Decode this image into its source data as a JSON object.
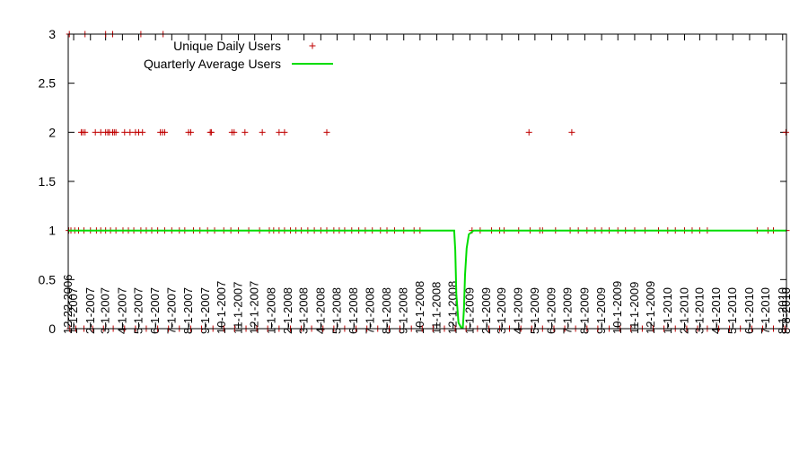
{
  "chart_data": {
    "type": "scatter",
    "title": "",
    "xlabel": "",
    "ylabel": "",
    "ylim": [
      0,
      3
    ],
    "yticks": [
      "0",
      "0.5",
      "1",
      "1.5",
      "2",
      "2.5",
      "3"
    ],
    "legend_position": "top-left",
    "grid": false,
    "colors": {
      "points": "#c00000",
      "line": "#00dd00"
    },
    "x_tick_labels": [
      "12-22-2006",
      "1-1-2007",
      "2-1-2007",
      "3-1-2007",
      "4-1-2007",
      "5-1-2007",
      "6-1-2007",
      "7-1-2007",
      "8-1-2007",
      "9-1-2007",
      "10-1-2007",
      "11-1-2007",
      "12-1-2007",
      "1-1-2008",
      "2-1-2008",
      "3-1-2008",
      "4-1-2008",
      "5-1-2008",
      "6-1-2008",
      "7-1-2008",
      "8-1-2008",
      "9-1-2008",
      "10-1-2008",
      "11-1-2008",
      "12-1-2008",
      "1-1-2009",
      "2-1-2009",
      "3-1-2009",
      "4-1-2009",
      "5-1-2009",
      "6-1-2009",
      "7-1-2009",
      "8-1-2009",
      "9-1-2009",
      "10-1-2009",
      "11-1-2009",
      "12-1-2009",
      "1-1-2010",
      "2-1-2010",
      "3-1-2010",
      "4-1-2010",
      "5-1-2010",
      "6-1-2010",
      "7-1-2010",
      "8-1-2010",
      "8-8-2010"
    ],
    "series": [
      {
        "name": "Unique Daily Users",
        "marker": "+",
        "points": [
          {
            "x": "2006-12-24",
            "y": 3
          },
          {
            "x": "2007-01-22",
            "y": 3
          },
          {
            "x": "2007-03-01",
            "y": 3
          },
          {
            "x": "2007-03-14",
            "y": 3
          },
          {
            "x": "2007-05-05",
            "y": 3
          },
          {
            "x": "2007-06-15",
            "y": 3
          },
          {
            "x": "2007-01-15",
            "y": 2
          },
          {
            "x": "2007-01-18",
            "y": 2
          },
          {
            "x": "2007-01-22",
            "y": 2
          },
          {
            "x": "2007-02-10",
            "y": 2
          },
          {
            "x": "2007-02-20",
            "y": 2
          },
          {
            "x": "2007-03-01",
            "y": 2
          },
          {
            "x": "2007-03-05",
            "y": 2
          },
          {
            "x": "2007-03-08",
            "y": 2
          },
          {
            "x": "2007-03-14",
            "y": 2
          },
          {
            "x": "2007-03-17",
            "y": 2
          },
          {
            "x": "2007-03-20",
            "y": 2
          },
          {
            "x": "2007-04-05",
            "y": 2
          },
          {
            "x": "2007-04-15",
            "y": 2
          },
          {
            "x": "2007-04-25",
            "y": 2
          },
          {
            "x": "2007-05-01",
            "y": 2
          },
          {
            "x": "2007-05-08",
            "y": 2
          },
          {
            "x": "2007-06-10",
            "y": 2
          },
          {
            "x": "2007-06-14",
            "y": 2
          },
          {
            "x": "2007-06-18",
            "y": 2
          },
          {
            "x": "2007-08-01",
            "y": 2
          },
          {
            "x": "2007-08-05",
            "y": 2
          },
          {
            "x": "2007-09-10",
            "y": 2
          },
          {
            "x": "2007-09-12",
            "y": 2
          },
          {
            "x": "2007-10-20",
            "y": 2
          },
          {
            "x": "2007-10-24",
            "y": 2
          },
          {
            "x": "2007-11-13",
            "y": 2
          },
          {
            "x": "2007-12-15",
            "y": 2
          },
          {
            "x": "2008-01-15",
            "y": 2
          },
          {
            "x": "2008-01-25",
            "y": 2
          },
          {
            "x": "2008-04-12",
            "y": 2
          },
          {
            "x": "2009-04-20",
            "y": 2
          },
          {
            "x": "2009-07-08",
            "y": 2
          },
          {
            "x": "2010-08-07",
            "y": 2
          },
          {
            "x": "2006-12-23",
            "y": 1
          },
          {
            "x": "2006-12-27",
            "y": 1
          },
          {
            "x": "2007-01-03",
            "y": 1
          },
          {
            "x": "2007-01-10",
            "y": 1
          },
          {
            "x": "2007-01-20",
            "y": 1
          },
          {
            "x": "2007-02-01",
            "y": 1
          },
          {
            "x": "2007-02-12",
            "y": 1
          },
          {
            "x": "2007-02-20",
            "y": 1
          },
          {
            "x": "2007-03-01",
            "y": 1
          },
          {
            "x": "2007-03-10",
            "y": 1
          },
          {
            "x": "2007-03-20",
            "y": 1
          },
          {
            "x": "2007-04-02",
            "y": 1
          },
          {
            "x": "2007-04-12",
            "y": 1
          },
          {
            "x": "2007-04-22",
            "y": 1
          },
          {
            "x": "2007-05-05",
            "y": 1
          },
          {
            "x": "2007-05-15",
            "y": 1
          },
          {
            "x": "2007-05-25",
            "y": 1
          },
          {
            "x": "2007-06-05",
            "y": 1
          },
          {
            "x": "2007-06-18",
            "y": 1
          },
          {
            "x": "2007-07-01",
            "y": 1
          },
          {
            "x": "2007-07-15",
            "y": 1
          },
          {
            "x": "2007-07-25",
            "y": 1
          },
          {
            "x": "2007-08-10",
            "y": 1
          },
          {
            "x": "2007-08-22",
            "y": 1
          },
          {
            "x": "2007-09-05",
            "y": 1
          },
          {
            "x": "2007-09-18",
            "y": 1
          },
          {
            "x": "2007-10-05",
            "y": 1
          },
          {
            "x": "2007-10-18",
            "y": 1
          },
          {
            "x": "2007-11-01",
            "y": 1
          },
          {
            "x": "2007-11-20",
            "y": 1
          },
          {
            "x": "2007-12-10",
            "y": 1
          },
          {
            "x": "2007-12-28",
            "y": 1
          },
          {
            "x": "2008-01-05",
            "y": 1
          },
          {
            "x": "2008-01-15",
            "y": 1
          },
          {
            "x": "2008-01-25",
            "y": 1
          },
          {
            "x": "2008-02-05",
            "y": 1
          },
          {
            "x": "2008-02-15",
            "y": 1
          },
          {
            "x": "2008-02-25",
            "y": 1
          },
          {
            "x": "2008-03-08",
            "y": 1
          },
          {
            "x": "2008-03-20",
            "y": 1
          },
          {
            "x": "2008-04-01",
            "y": 1
          },
          {
            "x": "2008-04-12",
            "y": 1
          },
          {
            "x": "2008-04-25",
            "y": 1
          },
          {
            "x": "2008-05-05",
            "y": 1
          },
          {
            "x": "2008-05-15",
            "y": 1
          },
          {
            "x": "2008-05-28",
            "y": 1
          },
          {
            "x": "2008-06-10",
            "y": 1
          },
          {
            "x": "2008-06-22",
            "y": 1
          },
          {
            "x": "2008-07-05",
            "y": 1
          },
          {
            "x": "2008-07-20",
            "y": 1
          },
          {
            "x": "2008-08-01",
            "y": 1
          },
          {
            "x": "2008-08-15",
            "y": 1
          },
          {
            "x": "2008-09-01",
            "y": 1
          },
          {
            "x": "2008-09-20",
            "y": 1
          },
          {
            "x": "2008-10-01",
            "y": 1
          },
          {
            "x": "2009-01-05",
            "y": 1
          },
          {
            "x": "2009-01-20",
            "y": 1
          },
          {
            "x": "2009-02-10",
            "y": 1
          },
          {
            "x": "2009-02-25",
            "y": 1
          },
          {
            "x": "2009-03-05",
            "y": 1
          },
          {
            "x": "2009-04-01",
            "y": 1
          },
          {
            "x": "2009-04-22",
            "y": 1
          },
          {
            "x": "2009-05-10",
            "y": 1
          },
          {
            "x": "2009-05-15",
            "y": 1
          },
          {
            "x": "2009-06-08",
            "y": 1
          },
          {
            "x": "2009-07-05",
            "y": 1
          },
          {
            "x": "2009-07-20",
            "y": 1
          },
          {
            "x": "2009-08-05",
            "y": 1
          },
          {
            "x": "2009-08-20",
            "y": 1
          },
          {
            "x": "2009-09-01",
            "y": 1
          },
          {
            "x": "2009-09-15",
            "y": 1
          },
          {
            "x": "2009-10-01",
            "y": 1
          },
          {
            "x": "2009-10-15",
            "y": 1
          },
          {
            "x": "2009-11-01",
            "y": 1
          },
          {
            "x": "2009-11-20",
            "y": 1
          },
          {
            "x": "2009-12-15",
            "y": 1
          },
          {
            "x": "2010-01-01",
            "y": 1
          },
          {
            "x": "2010-01-15",
            "y": 1
          },
          {
            "x": "2010-02-01",
            "y": 1
          },
          {
            "x": "2010-02-15",
            "y": 1
          },
          {
            "x": "2010-03-01",
            "y": 1
          },
          {
            "x": "2010-03-15",
            "y": 1
          },
          {
            "x": "2010-06-15",
            "y": 1
          },
          {
            "x": "2010-07-05",
            "y": 1
          },
          {
            "x": "2010-07-15",
            "y": 1
          },
          {
            "x": "2010-08-08",
            "y": 1
          },
          {
            "x": "2006-12-25",
            "y": 0
          },
          {
            "x": "2007-01-05",
            "y": 0
          },
          {
            "x": "2007-01-20",
            "y": 0
          },
          {
            "x": "2007-02-05",
            "y": 0
          },
          {
            "x": "2007-02-25",
            "y": 0
          },
          {
            "x": "2007-03-15",
            "y": 0
          },
          {
            "x": "2007-04-05",
            "y": 0
          },
          {
            "x": "2007-04-25",
            "y": 0
          },
          {
            "x": "2007-05-15",
            "y": 0
          },
          {
            "x": "2007-06-05",
            "y": 0
          },
          {
            "x": "2007-06-25",
            "y": 0
          },
          {
            "x": "2007-07-15",
            "y": 0
          },
          {
            "x": "2007-08-05",
            "y": 0
          },
          {
            "x": "2007-08-25",
            "y": 0
          },
          {
            "x": "2007-09-15",
            "y": 0
          },
          {
            "x": "2007-10-05",
            "y": 0
          },
          {
            "x": "2007-10-25",
            "y": 0
          },
          {
            "x": "2007-11-15",
            "y": 0
          },
          {
            "x": "2007-12-05",
            "y": 0
          },
          {
            "x": "2007-12-25",
            "y": 0
          },
          {
            "x": "2008-01-15",
            "y": 0
          },
          {
            "x": "2008-02-05",
            "y": 0
          },
          {
            "x": "2008-02-25",
            "y": 0
          },
          {
            "x": "2008-03-15",
            "y": 0
          },
          {
            "x": "2008-04-05",
            "y": 0
          },
          {
            "x": "2008-04-25",
            "y": 0
          },
          {
            "x": "2008-05-15",
            "y": 0
          },
          {
            "x": "2008-06-05",
            "y": 0
          },
          {
            "x": "2008-06-25",
            "y": 0
          },
          {
            "x": "2008-07-15",
            "y": 0
          },
          {
            "x": "2008-08-05",
            "y": 0
          },
          {
            "x": "2008-08-25",
            "y": 0
          },
          {
            "x": "2008-09-15",
            "y": 0
          },
          {
            "x": "2008-10-05",
            "y": 0
          },
          {
            "x": "2008-10-25",
            "y": 0
          },
          {
            "x": "2008-11-15",
            "y": 0
          },
          {
            "x": "2008-12-05",
            "y": 0
          },
          {
            "x": "2008-12-25",
            "y": 0
          },
          {
            "x": "2009-01-15",
            "y": 0
          },
          {
            "x": "2009-02-05",
            "y": 0
          },
          {
            "x": "2009-02-25",
            "y": 0
          },
          {
            "x": "2009-03-15",
            "y": 0
          },
          {
            "x": "2009-04-05",
            "y": 0
          },
          {
            "x": "2009-04-25",
            "y": 0
          },
          {
            "x": "2009-05-15",
            "y": 0
          },
          {
            "x": "2009-06-05",
            "y": 0
          },
          {
            "x": "2009-06-25",
            "y": 0
          },
          {
            "x": "2009-07-15",
            "y": 0
          },
          {
            "x": "2009-08-05",
            "y": 0
          },
          {
            "x": "2009-08-25",
            "y": 0
          },
          {
            "x": "2009-09-15",
            "y": 0
          },
          {
            "x": "2009-10-05",
            "y": 0
          },
          {
            "x": "2009-10-25",
            "y": 0
          },
          {
            "x": "2009-11-15",
            "y": 0
          },
          {
            "x": "2009-12-05",
            "y": 0
          },
          {
            "x": "2009-12-25",
            "y": 0
          },
          {
            "x": "2010-01-15",
            "y": 0
          },
          {
            "x": "2010-02-05",
            "y": 0
          },
          {
            "x": "2010-02-25",
            "y": 0
          },
          {
            "x": "2010-03-15",
            "y": 0
          },
          {
            "x": "2010-04-05",
            "y": 0
          },
          {
            "x": "2010-04-25",
            "y": 0
          },
          {
            "x": "2010-05-15",
            "y": 0
          },
          {
            "x": "2010-06-05",
            "y": 0
          },
          {
            "x": "2010-06-25",
            "y": 0
          },
          {
            "x": "2010-07-15",
            "y": 0
          },
          {
            "x": "2010-08-05",
            "y": 0
          }
        ]
      },
      {
        "name": "Quarterly Average Users",
        "marker": "line",
        "points": [
          {
            "x": "2006-12-22",
            "y": 1
          },
          {
            "x": "2008-12-03",
            "y": 1
          },
          {
            "x": "2008-12-05",
            "y": 0.8
          },
          {
            "x": "2008-12-07",
            "y": 0.35
          },
          {
            "x": "2008-12-11",
            "y": 0.06
          },
          {
            "x": "2008-12-16",
            "y": 0.01
          },
          {
            "x": "2008-12-19",
            "y": 0.01
          },
          {
            "x": "2008-12-21",
            "y": 0.2
          },
          {
            "x": "2008-12-23",
            "y": 0.55
          },
          {
            "x": "2008-12-26",
            "y": 0.82
          },
          {
            "x": "2008-12-30",
            "y": 0.96
          },
          {
            "x": "2009-01-08",
            "y": 1
          },
          {
            "x": "2010-08-08",
            "y": 1
          }
        ]
      }
    ]
  }
}
